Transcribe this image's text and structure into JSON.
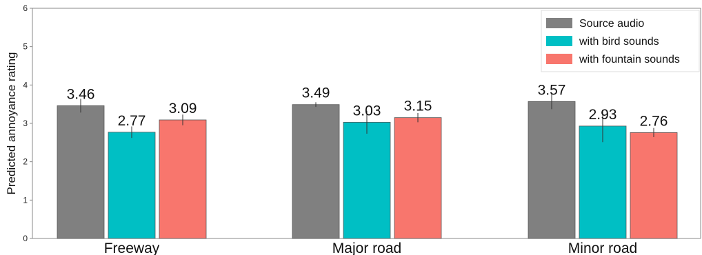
{
  "chart_data": {
    "type": "bar",
    "title": "",
    "xlabel": "",
    "ylabel": "Predicted annoyance rating",
    "ylim": [
      0,
      6
    ],
    "yticks": [
      0,
      1,
      2,
      3,
      4,
      5,
      6
    ],
    "categories": [
      "Freeway",
      "Major road",
      "Minor road"
    ],
    "series": [
      {
        "name": "Source audio",
        "values": [
          3.46,
          3.49,
          3.57
        ],
        "errors": [
          0.18,
          0.06,
          0.2
        ],
        "color": "#808080"
      },
      {
        "name": "with bird sounds",
        "values": [
          2.77,
          3.03,
          2.93
        ],
        "errors": [
          0.15,
          0.3,
          0.42
        ],
        "color": "#00BFC4"
      },
      {
        "name": "with fountain sounds",
        "values": [
          3.09,
          3.15,
          2.76
        ],
        "errors": [
          0.14,
          0.12,
          0.12
        ],
        "color": "#F8766D"
      }
    ],
    "value_labels": [
      [
        "3.46",
        "3.49",
        "3.57"
      ],
      [
        "2.77",
        "3.03",
        "2.93"
      ],
      [
        "3.09",
        "3.15",
        "2.76"
      ]
    ],
    "legend_position": "top-right",
    "grid": false
  }
}
